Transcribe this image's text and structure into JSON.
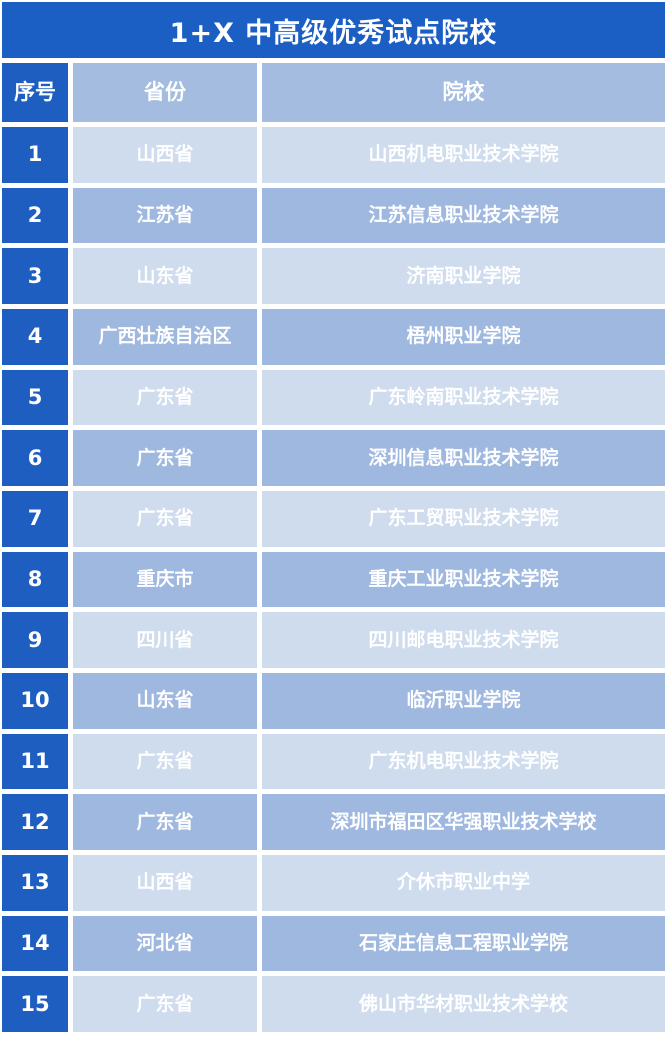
{
  "title": "1+X 中高级优秀试点院校",
  "chart_data": {
    "type": "table",
    "title": "1+X 中高级优秀试点院校",
    "columns": [
      "序号",
      "省份",
      "院校"
    ],
    "rows": [
      [
        "1",
        "山西省",
        "山西机电职业技术学院"
      ],
      [
        "2",
        "江苏省",
        "江苏信息职业技术学院"
      ],
      [
        "3",
        "山东省",
        "济南职业学院"
      ],
      [
        "4",
        "广西壮族自治区",
        "梧州职业学院"
      ],
      [
        "5",
        "广东省",
        "广东岭南职业技术学院"
      ],
      [
        "6",
        "广东省",
        "深圳信息职业技术学院"
      ],
      [
        "7",
        "广东省",
        "广东工贸职业技术学院"
      ],
      [
        "8",
        "重庆市",
        "重庆工业职业技术学院"
      ],
      [
        "9",
        "四川省",
        "四川邮电职业技术学院"
      ],
      [
        "10",
        "山东省",
        "临沂职业学院"
      ],
      [
        "11",
        "广东省",
        "广东机电职业技术学院"
      ],
      [
        "12",
        "广东省",
        "深圳市福田区华强职业技术学校"
      ],
      [
        "13",
        "山西省",
        "介休市职业中学"
      ],
      [
        "14",
        "河北省",
        "石家庄信息工程职业学院"
      ],
      [
        "15",
        "广东省",
        "佛山市华材职业技术学校"
      ]
    ]
  },
  "colors": {
    "title_bar_blue": "#1c5fc4",
    "index_cell_blue": "#1d5ec0",
    "header_cell_blue": "#a4bce0",
    "row_light_blue": "#cfdcee",
    "row_medium_blue": "#9fb8df",
    "text_color": "#ffffff"
  }
}
